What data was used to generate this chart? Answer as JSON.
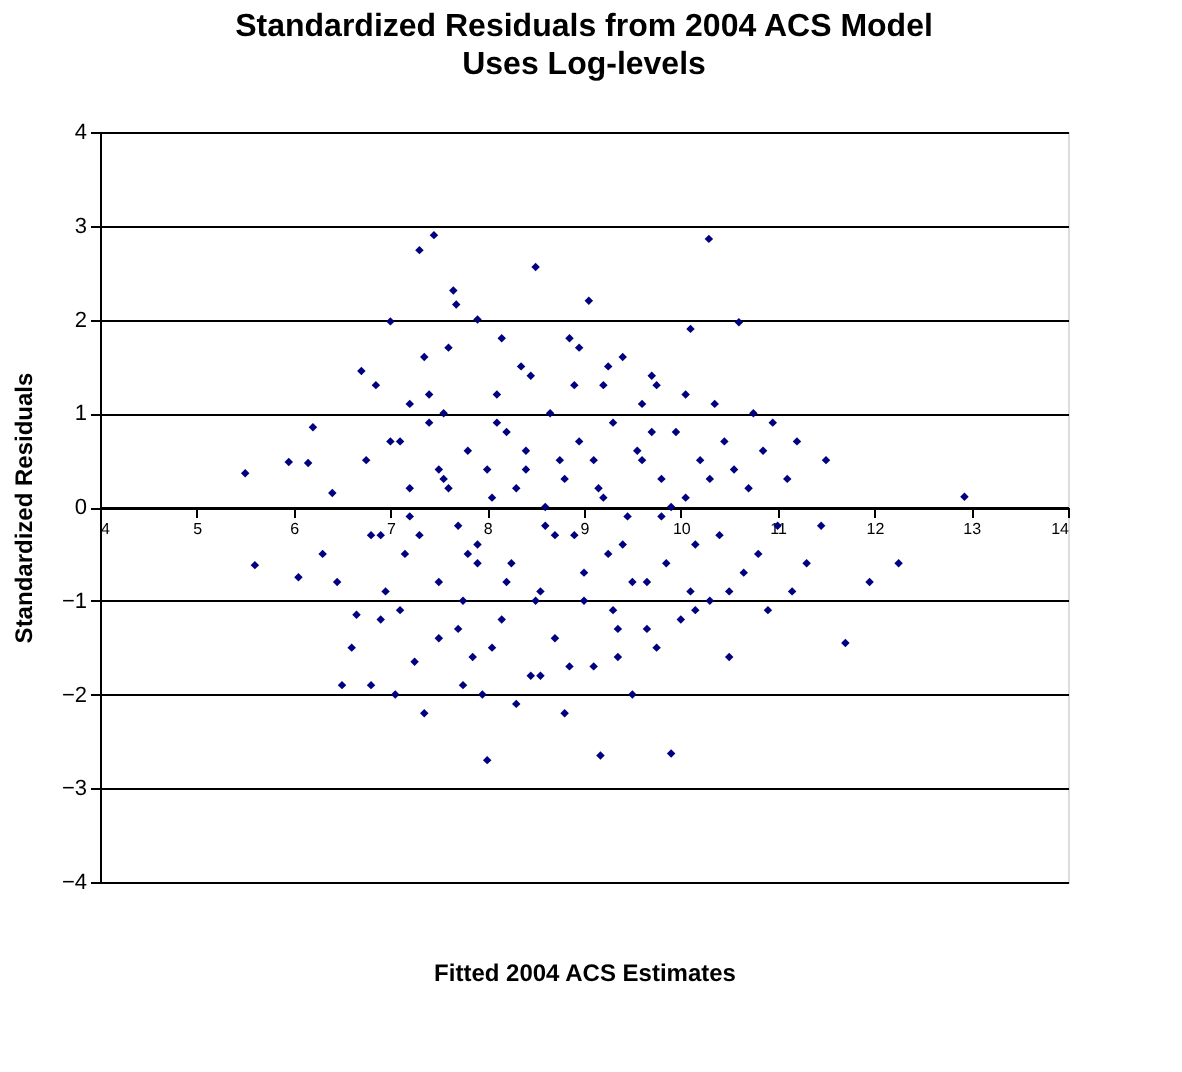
{
  "chart_data": {
    "type": "scatter",
    "title": "Standardized Residuals from 2004 ACS Model",
    "subtitle": "Uses Log-levels",
    "xlabel": "Fitted 2004 ACS Estimates",
    "ylabel": "Standardized Residuals",
    "xlim": [
      4,
      14
    ],
    "ylim": [
      -4,
      4
    ],
    "xticks": [
      4,
      5,
      6,
      7,
      8,
      9,
      10,
      11,
      12,
      13,
      14
    ],
    "yticks": [
      -4,
      -3,
      -2,
      -1,
      0,
      1,
      2,
      3,
      4
    ],
    "grid": "y",
    "marker": "diamond",
    "legend": false,
    "series": [
      {
        "color": "#000080",
        "x": [
          5.5,
          5.6,
          5.95,
          6.15,
          6.2,
          6.05,
          6.3,
          6.4,
          6.45,
          6.5,
          6.6,
          6.65,
          6.7,
          6.75,
          6.8,
          6.85,
          6.9,
          6.95,
          7.0,
          7.0,
          7.05,
          7.1,
          7.15,
          7.2,
          7.2,
          7.25,
          7.3,
          7.35,
          7.4,
          7.45,
          7.5,
          7.5,
          7.55,
          7.6,
          7.65,
          7.68,
          7.7,
          7.75,
          7.8,
          7.85,
          7.9,
          7.9,
          7.95,
          8.0,
          8.05,
          8.1,
          8.15,
          8.2,
          8.25,
          8.3,
          8.35,
          8.4,
          8.45,
          8.5,
          8.55,
          8.6,
          8.65,
          8.7,
          8.75,
          8.8,
          8.85,
          8.9,
          8.95,
          9.0,
          9.05,
          9.1,
          9.15,
          9.17,
          9.2,
          9.25,
          9.3,
          9.35,
          9.4,
          9.45,
          9.5,
          9.55,
          9.6,
          9.65,
          9.7,
          9.75,
          9.8,
          9.85,
          9.9,
          9.95,
          10.0,
          10.05,
          10.1,
          10.15,
          10.2,
          10.29,
          10.3,
          10.35,
          10.4,
          10.45,
          10.5,
          10.55,
          10.6,
          10.65,
          10.7,
          10.75,
          10.8,
          10.85,
          10.9,
          10.95,
          11.0,
          11.1,
          11.15,
          11.2,
          11.3,
          11.45,
          11.5,
          11.7,
          11.95,
          12.25,
          12.93,
          7.3,
          7.6,
          7.8,
          8.0,
          8.2,
          8.4,
          8.6,
          8.8,
          9.0,
          9.2,
          9.4,
          9.6,
          9.8,
          7.4,
          7.7,
          8.1,
          8.5,
          8.9,
          9.3,
          9.7,
          10.1,
          7.2,
          7.5,
          7.9,
          8.3,
          8.7,
          9.1,
          9.5,
          9.9,
          10.3,
          6.9,
          7.1,
          7.55,
          8.05,
          8.45,
          8.85,
          9.25,
          9.65,
          10.05,
          10.5,
          6.8,
          7.35,
          7.75,
          8.15,
          8.55,
          8.95,
          9.35,
          9.75,
          10.15
        ],
        "values": [
          0.36,
          -0.62,
          0.48,
          0.47,
          0.85,
          -0.75,
          -0.5,
          0.15,
          -0.8,
          -1.9,
          -1.5,
          -1.15,
          1.45,
          0.5,
          -1.9,
          1.3,
          -0.3,
          -0.9,
          1.98,
          0.7,
          -2.0,
          -1.1,
          -0.5,
          0.2,
          1.1,
          -1.65,
          2.74,
          -2.2,
          0.9,
          2.9,
          -0.8,
          -1.4,
          0.3,
          1.7,
          2.31,
          2.16,
          -0.2,
          -1.0,
          0.6,
          -1.6,
          2.0,
          -0.4,
          -2.0,
          -2.7,
          0.1,
          1.2,
          -1.2,
          0.8,
          -0.6,
          -2.1,
          1.5,
          0.4,
          -1.8,
          2.56,
          -0.9,
          0.0,
          1.0,
          -1.4,
          0.5,
          -2.2,
          1.8,
          -0.3,
          0.7,
          -1.0,
          2.2,
          -1.7,
          0.2,
          -2.65,
          1.3,
          -0.5,
          0.9,
          -1.3,
          1.6,
          -0.1,
          -2.0,
          0.6,
          1.1,
          -0.8,
          1.4,
          -1.5,
          0.3,
          -0.6,
          -2.63,
          0.8,
          -1.2,
          0.1,
          1.9,
          -0.4,
          0.5,
          2.86,
          -1.0,
          1.1,
          -0.3,
          0.7,
          -1.6,
          0.4,
          1.97,
          -0.7,
          0.2,
          1.0,
          -0.5,
          0.6,
          -1.1,
          0.9,
          -0.2,
          0.3,
          -0.9,
          0.7,
          -0.6,
          -0.2,
          0.5,
          -1.45,
          -0.8,
          -0.6,
          0.11,
          -0.3,
          0.2,
          -0.5,
          0.4,
          -0.8,
          0.6,
          -0.2,
          0.3,
          -0.7,
          0.1,
          -0.4,
          0.5,
          -0.1,
          1.2,
          -1.3,
          0.9,
          -1.0,
          1.3,
          -1.1,
          0.8,
          -0.9,
          -0.1,
          0.4,
          -0.6,
          0.2,
          -0.3,
          0.5,
          -0.8,
          0.0,
          0.3,
          -1.2,
          0.7,
          1.0,
          -1.5,
          1.4,
          -1.7,
          1.5,
          -1.3,
          1.2,
          -0.9,
          -0.3,
          1.6,
          -1.9,
          1.8,
          -1.8,
          1.7,
          -1.6,
          1.3,
          -1.1
        ]
      }
    ]
  }
}
